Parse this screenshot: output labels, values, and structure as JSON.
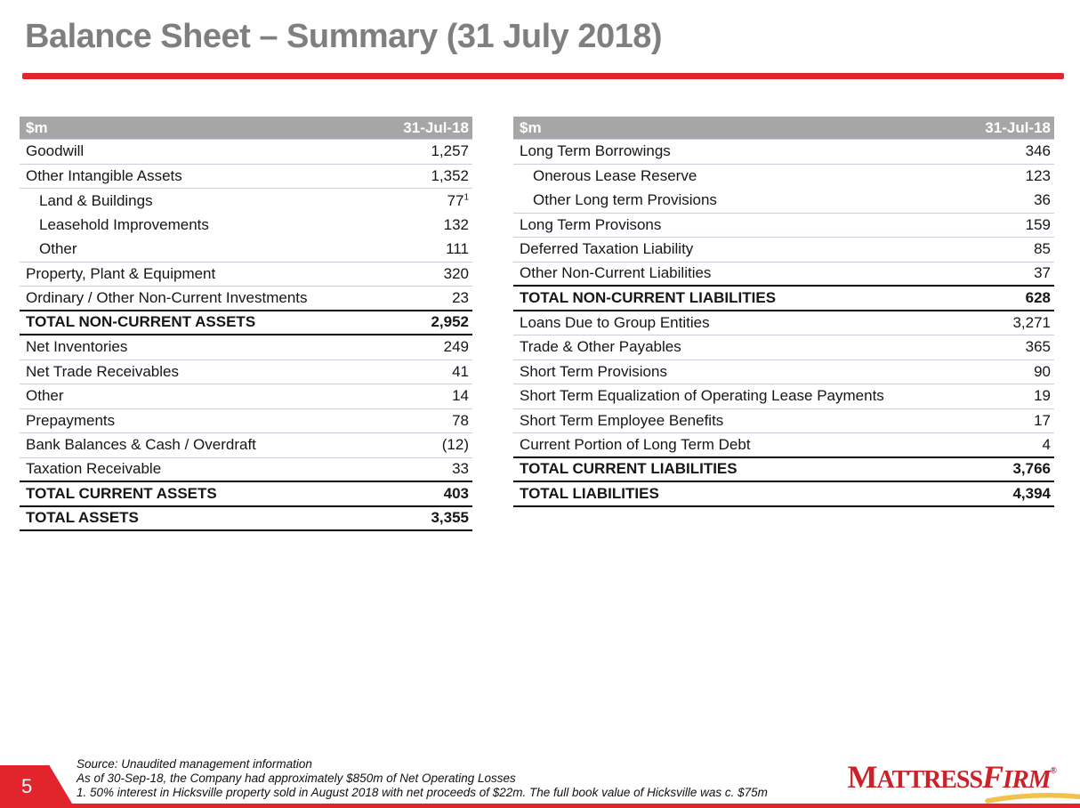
{
  "title": "Balance Sheet – Summary (31 July 2018)",
  "colors": {
    "accent_red": "#E2242C",
    "table_header_gray": "#A6A6A6",
    "title_gray": "#7F7F7F",
    "logo_red": "#CB2229",
    "swoosh_yellow": "#F2C14B",
    "light_row_border": "#C8CEDA"
  },
  "tables": {
    "assets": {
      "header": {
        "unit": "$m",
        "date": "31-Jul-18"
      },
      "rows": [
        {
          "label": "Goodwill",
          "value": "1,257",
          "indent": false,
          "bold": false,
          "border": "light"
        },
        {
          "label": "Other Intangible Assets",
          "value": "1,352",
          "indent": false,
          "bold": false,
          "border": "light"
        },
        {
          "label": "Land & Buildings",
          "value": "77",
          "sup": "1",
          "indent": true,
          "bold": false,
          "border": "none"
        },
        {
          "label": "Leasehold Improvements",
          "value": "132",
          "indent": true,
          "bold": false,
          "border": "none"
        },
        {
          "label": "Other",
          "value": "111",
          "indent": true,
          "bold": false,
          "border": "light"
        },
        {
          "label": "Property, Plant & Equipment",
          "value": "320",
          "indent": false,
          "bold": false,
          "border": "light"
        },
        {
          "label": "Ordinary / Other Non-Current Investments",
          "value": "23",
          "indent": false,
          "bold": false,
          "border": "thick"
        },
        {
          "label": "TOTAL NON-CURRENT ASSETS",
          "value": "2,952",
          "indent": false,
          "bold": true,
          "border": "thick"
        },
        {
          "label": "Net Inventories",
          "value": "249",
          "indent": false,
          "bold": false,
          "border": "light"
        },
        {
          "label": "Net Trade Receivables",
          "value": "41",
          "indent": false,
          "bold": false,
          "border": "light"
        },
        {
          "label": "Other",
          "value": "14",
          "indent": false,
          "bold": false,
          "border": "light"
        },
        {
          "label": "Prepayments",
          "value": "78",
          "indent": false,
          "bold": false,
          "border": "light"
        },
        {
          "label": "Bank Balances & Cash / Overdraft",
          "value": "(12)",
          "indent": false,
          "bold": false,
          "border": "light"
        },
        {
          "label": "Taxation Receivable",
          "value": "33",
          "indent": false,
          "bold": false,
          "border": "thick"
        },
        {
          "label": "TOTAL CURRENT ASSETS",
          "value": "403",
          "indent": false,
          "bold": true,
          "border": "thick"
        },
        {
          "label": "TOTAL ASSETS",
          "value": "3,355",
          "indent": false,
          "bold": true,
          "border": "thick"
        }
      ]
    },
    "liabilities": {
      "header": {
        "unit": "$m",
        "date": "31-Jul-18"
      },
      "rows": [
        {
          "label": "Long Term Borrowings",
          "value": "346",
          "indent": false,
          "bold": false,
          "border": "light"
        },
        {
          "label": "Onerous Lease Reserve",
          "value": "123",
          "indent": true,
          "bold": false,
          "border": "none"
        },
        {
          "label": "Other Long term Provisions",
          "value": "36",
          "indent": true,
          "bold": false,
          "border": "light"
        },
        {
          "label": "Long Term Provisons",
          "value": "159",
          "indent": false,
          "bold": false,
          "border": "light"
        },
        {
          "label": "Deferred Taxation Liability",
          "value": "85",
          "indent": false,
          "bold": false,
          "border": "light"
        },
        {
          "label": "Other Non-Current Liabilities",
          "value": "37",
          "indent": false,
          "bold": false,
          "border": "thick"
        },
        {
          "label": "TOTAL NON-CURRENT LIABILITIES",
          "value": "628",
          "indent": false,
          "bold": true,
          "border": "thick"
        },
        {
          "label": "Loans Due to Group Entities",
          "value": "3,271",
          "indent": false,
          "bold": false,
          "border": "light"
        },
        {
          "label": "Trade & Other Payables",
          "value": "365",
          "indent": false,
          "bold": false,
          "border": "light"
        },
        {
          "label": "Short Term Provisions",
          "value": "90",
          "indent": false,
          "bold": false,
          "border": "light"
        },
        {
          "label": "Short Term Equalization of Operating Lease Payments",
          "value": "19",
          "indent": false,
          "bold": false,
          "border": "light"
        },
        {
          "label": "Short Term Employee Benefits",
          "value": "17",
          "indent": false,
          "bold": false,
          "border": "light"
        },
        {
          "label": "Current Portion of Long Term Debt",
          "value": "4",
          "indent": false,
          "bold": false,
          "border": "thick"
        },
        {
          "label": "TOTAL CURRENT LIABILITIES",
          "value": "3,766",
          "indent": false,
          "bold": true,
          "border": "thick"
        },
        {
          "label": "TOTAL LIABILITIES",
          "value": "4,394",
          "indent": false,
          "bold": true,
          "border": "thick"
        }
      ]
    }
  },
  "footer": {
    "page_number": "5",
    "notes": [
      "Source: Unaudited management information",
      "As of 30-Sep-18, the Company had approximately $850m of Net Operating Losses",
      "1. 50% interest in Hicksville property sold in August 2018 with net proceeds of $22m. The full book value of Hicksville was c. $75m"
    ],
    "logo": {
      "part1": "MATTRESS",
      "part2": "FIRM",
      "registered": "®"
    }
  }
}
